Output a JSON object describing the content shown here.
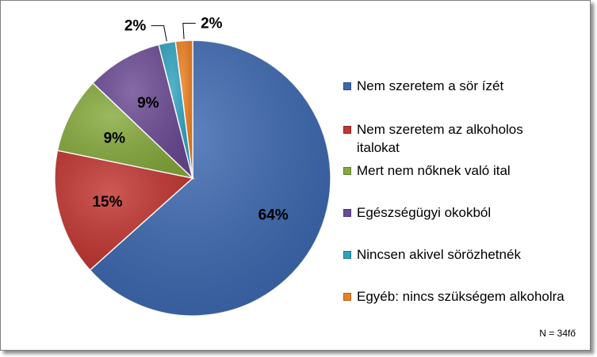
{
  "chart_data": {
    "type": "pie",
    "slices": [
      {
        "label": "Nem szeretem a sör ízét",
        "value": 64,
        "display": "64%",
        "color": "#3c68b0"
      },
      {
        "label": "Nem szeretem az alkoholos italokat",
        "value": 15,
        "display": "15%",
        "color": "#c23530"
      },
      {
        "label": "Mert nem nőknek való ital",
        "value": 9,
        "display": "9%",
        "color": "#86aa3c"
      },
      {
        "label": "Egészségügyi okokból",
        "value": 9,
        "display": "9%",
        "color": "#6b4a94"
      },
      {
        "label": "Nincsen akivel sörözhetnék",
        "value": 2,
        "display": "2%",
        "color": "#2ea3bf"
      },
      {
        "label": "Egyéb: nincs szükségem alkoholra",
        "value": 2,
        "display": "2%",
        "color": "#ee8020"
      }
    ],
    "legend_position": "right",
    "note": "N = 34fő"
  }
}
